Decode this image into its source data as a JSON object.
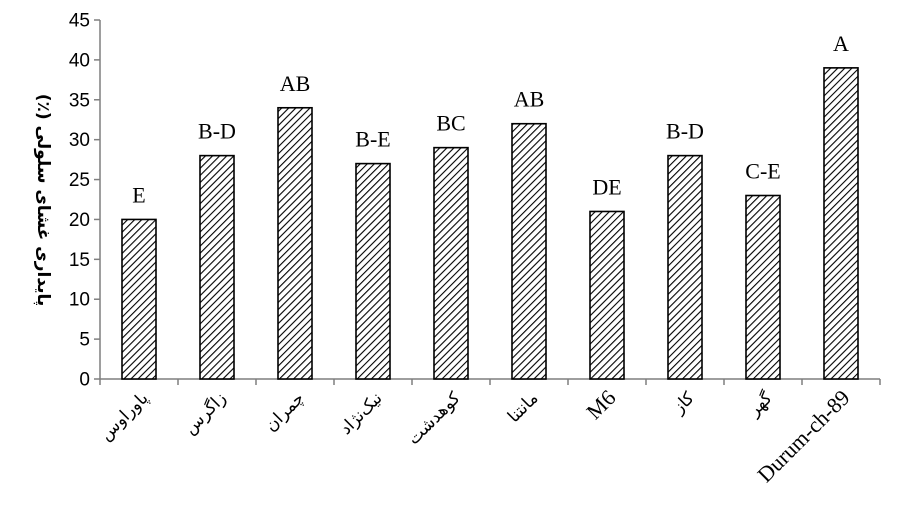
{
  "chart_data": {
    "type": "bar",
    "title": "",
    "xlabel": "",
    "ylabel": "پایداری غشای سلولی (٪)",
    "ylim": [
      0,
      45
    ],
    "y_ticks": [
      0,
      5,
      10,
      15,
      20,
      25,
      30,
      35,
      40,
      45
    ],
    "grid": false,
    "bar_pattern": "diagonal-hatch",
    "categories": [
      "پاوراوس",
      "زاگرس",
      "چمران",
      "نیک‌نژاد",
      "کوهدشت",
      "مانتنا",
      "M6",
      "کاز",
      "گهر",
      "Durum-ch-89"
    ],
    "values": [
      20,
      28,
      34,
      27,
      29,
      32,
      21,
      28,
      23,
      39
    ],
    "group_labels": [
      "E",
      "B-D",
      "AB",
      "B-E",
      "BC",
      "AB",
      "DE",
      "B-D",
      "C-E",
      "A"
    ]
  }
}
